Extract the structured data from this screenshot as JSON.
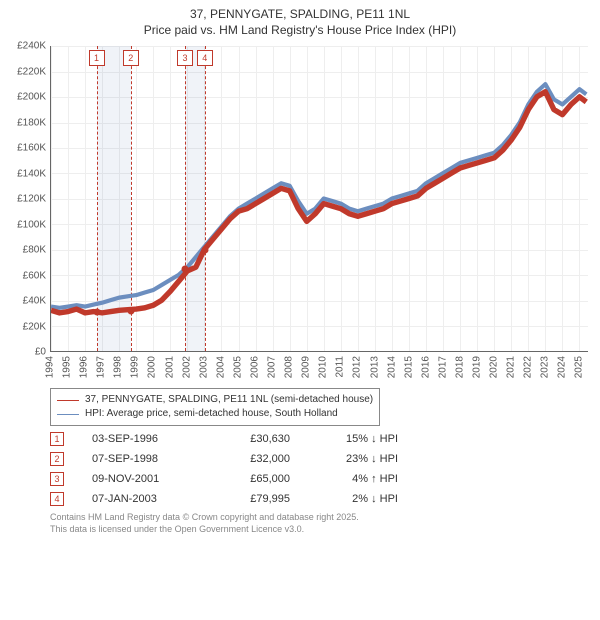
{
  "title": {
    "line1": "37, PENNYGATE, SPALDING, PE11 1NL",
    "line2": "Price paid vs. HM Land Registry's House Price Index (HPI)"
  },
  "chart": {
    "type": "line",
    "x_domain": [
      1994,
      2025.5
    ],
    "y_domain": [
      0,
      240
    ],
    "y_ticks": [
      0,
      20,
      40,
      60,
      80,
      100,
      120,
      140,
      160,
      180,
      200,
      220,
      240
    ],
    "y_tick_labels": [
      "£0",
      "£20K",
      "£40K",
      "£60K",
      "£80K",
      "£100K",
      "£120K",
      "£140K",
      "£160K",
      "£180K",
      "£200K",
      "£220K",
      "£240K"
    ],
    "x_ticks": [
      1994,
      1995,
      1996,
      1997,
      1998,
      1999,
      2000,
      2001,
      2002,
      2003,
      2004,
      2005,
      2006,
      2007,
      2008,
      2009,
      2010,
      2011,
      2012,
      2013,
      2014,
      2015,
      2016,
      2017,
      2018,
      2019,
      2020,
      2021,
      2022,
      2023,
      2024,
      2025
    ],
    "grid_color": "#eeeeee",
    "axis_color": "#666666",
    "background": "#ffffff",
    "series": {
      "hpi": {
        "color": "#6C8EBF",
        "width": 1.4,
        "points": [
          [
            1994.0,
            35
          ],
          [
            1994.5,
            34
          ],
          [
            1995.0,
            35
          ],
          [
            1995.5,
            36
          ],
          [
            1996.0,
            35
          ],
          [
            1996.5,
            36.5
          ],
          [
            1997.0,
            38
          ],
          [
            1997.5,
            40
          ],
          [
            1998.0,
            42
          ],
          [
            1998.5,
            43
          ],
          [
            1999.0,
            44
          ],
          [
            1999.5,
            46
          ],
          [
            2000.0,
            48
          ],
          [
            2000.5,
            52
          ],
          [
            2001.0,
            56
          ],
          [
            2001.5,
            60
          ],
          [
            2002.0,
            66
          ],
          [
            2002.5,
            74
          ],
          [
            2003.0,
            82
          ],
          [
            2003.5,
            90
          ],
          [
            2004.0,
            98
          ],
          [
            2004.5,
            106
          ],
          [
            2005.0,
            112
          ],
          [
            2005.5,
            116
          ],
          [
            2006.0,
            120
          ],
          [
            2006.5,
            124
          ],
          [
            2007.0,
            128
          ],
          [
            2007.5,
            132
          ],
          [
            2008.0,
            130
          ],
          [
            2008.5,
            118
          ],
          [
            2009.0,
            108
          ],
          [
            2009.5,
            112
          ],
          [
            2010.0,
            120
          ],
          [
            2010.5,
            118
          ],
          [
            2011.0,
            116
          ],
          [
            2011.5,
            112
          ],
          [
            2012.0,
            110
          ],
          [
            2012.5,
            112
          ],
          [
            2013.0,
            114
          ],
          [
            2013.5,
            116
          ],
          [
            2014.0,
            120
          ],
          [
            2014.5,
            122
          ],
          [
            2015.0,
            124
          ],
          [
            2015.5,
            126
          ],
          [
            2016.0,
            132
          ],
          [
            2016.5,
            136
          ],
          [
            2017.0,
            140
          ],
          [
            2017.5,
            144
          ],
          [
            2018.0,
            148
          ],
          [
            2018.5,
            150
          ],
          [
            2019.0,
            152
          ],
          [
            2019.5,
            154
          ],
          [
            2020.0,
            156
          ],
          [
            2020.5,
            162
          ],
          [
            2021.0,
            170
          ],
          [
            2021.5,
            180
          ],
          [
            2022.0,
            194
          ],
          [
            2022.5,
            204
          ],
          [
            2023.0,
            210
          ],
          [
            2023.5,
            198
          ],
          [
            2024.0,
            194
          ],
          [
            2024.5,
            200
          ],
          [
            2025.0,
            206
          ],
          [
            2025.4,
            202
          ]
        ]
      },
      "price": {
        "color": "#c0392b",
        "width": 1.8,
        "points": [
          [
            1994.0,
            32
          ],
          [
            1994.5,
            30
          ],
          [
            1995.0,
            31
          ],
          [
            1995.5,
            33
          ],
          [
            1996.0,
            30
          ],
          [
            1996.5,
            31
          ],
          [
            1997.0,
            30
          ],
          [
            1997.5,
            31
          ],
          [
            1998.0,
            32
          ],
          [
            1998.5,
            32.5
          ],
          [
            1999.0,
            33
          ],
          [
            1999.5,
            34
          ],
          [
            2000.0,
            36
          ],
          [
            2000.5,
            40
          ],
          [
            2001.0,
            47
          ],
          [
            2001.5,
            55
          ],
          [
            2002.0,
            63
          ],
          [
            2002.5,
            66
          ],
          [
            2003.0,
            80
          ],
          [
            2003.5,
            88
          ],
          [
            2004.0,
            96
          ],
          [
            2004.5,
            104
          ],
          [
            2005.0,
            110
          ],
          [
            2005.5,
            112
          ],
          [
            2006.0,
            116
          ],
          [
            2006.5,
            120
          ],
          [
            2007.0,
            124
          ],
          [
            2007.5,
            128
          ],
          [
            2008.0,
            126
          ],
          [
            2008.5,
            112
          ],
          [
            2009.0,
            102
          ],
          [
            2009.5,
            108
          ],
          [
            2010.0,
            116
          ],
          [
            2010.5,
            114
          ],
          [
            2011.0,
            112
          ],
          [
            2011.5,
            108
          ],
          [
            2012.0,
            106
          ],
          [
            2012.5,
            108
          ],
          [
            2013.0,
            110
          ],
          [
            2013.5,
            112
          ],
          [
            2014.0,
            116
          ],
          [
            2014.5,
            118
          ],
          [
            2015.0,
            120
          ],
          [
            2015.5,
            122
          ],
          [
            2016.0,
            128
          ],
          [
            2016.5,
            132
          ],
          [
            2017.0,
            136
          ],
          [
            2017.5,
            140
          ],
          [
            2018.0,
            144
          ],
          [
            2018.5,
            146
          ],
          [
            2019.0,
            148
          ],
          [
            2019.5,
            150
          ],
          [
            2020.0,
            152
          ],
          [
            2020.5,
            158
          ],
          [
            2021.0,
            166
          ],
          [
            2021.5,
            176
          ],
          [
            2022.0,
            190
          ],
          [
            2022.5,
            200
          ],
          [
            2023.0,
            204
          ],
          [
            2023.5,
            190
          ],
          [
            2024.0,
            186
          ],
          [
            2024.5,
            194
          ],
          [
            2025.0,
            200
          ],
          [
            2025.4,
            196
          ]
        ]
      }
    },
    "markers": [
      {
        "x": 1996.67,
        "y": 30.63,
        "color": "#c0392b",
        "label": "1"
      },
      {
        "x": 1998.68,
        "y": 32.0,
        "color": "#c0392b",
        "label": "2"
      },
      {
        "x": 2001.86,
        "y": 65.0,
        "color": "#c0392b",
        "label": "3"
      },
      {
        "x": 2003.02,
        "y": 79.995,
        "color": "#c0392b",
        "label": "4"
      }
    ],
    "ref_band_color": "rgba(108,142,191,0.10)"
  },
  "legend": {
    "s1": "37, PENNYGATE, SPALDING, PE11 1NL (semi-detached house)",
    "s2": "HPI: Average price, semi-detached house, South Holland"
  },
  "sales": [
    {
      "n": "1",
      "date": "03-SEP-1996",
      "price": "£30,630",
      "diff": "15% ↓ HPI"
    },
    {
      "n": "2",
      "date": "07-SEP-1998",
      "price": "£32,000",
      "diff": "23% ↓ HPI"
    },
    {
      "n": "3",
      "date": "09-NOV-2001",
      "price": "£65,000",
      "diff": "4% ↑ HPI"
    },
    {
      "n": "4",
      "date": "07-JAN-2003",
      "price": "£79,995",
      "diff": "2% ↓ HPI"
    }
  ],
  "footer": {
    "l1": "Contains HM Land Registry data © Crown copyright and database right 2025.",
    "l2": "This data is licensed under the Open Government Licence v3.0."
  }
}
